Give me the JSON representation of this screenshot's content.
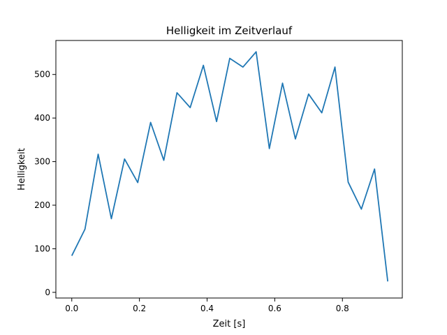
{
  "chart_data": {
    "type": "line",
    "title": "Helligkeit im Zeitverlauf",
    "xlabel": "Zeit [s]",
    "ylabel": "Helligkeit",
    "xlim": [
      -0.047,
      0.977
    ],
    "ylim": [
      -13,
      578
    ],
    "xticks": [
      0.0,
      0.2,
      0.4,
      0.6,
      0.8
    ],
    "xtick_labels": [
      "0.0",
      "0.2",
      "0.4",
      "0.6",
      "0.8"
    ],
    "yticks": [
      0,
      100,
      200,
      300,
      400,
      500
    ],
    "ytick_labels": [
      "0",
      "100",
      "200",
      "300",
      "400",
      "500"
    ],
    "grid": false,
    "series": [
      {
        "color": "#1f77b4",
        "x": [
          0.0,
          0.039,
          0.078,
          0.117,
          0.156,
          0.195,
          0.233,
          0.272,
          0.311,
          0.35,
          0.389,
          0.428,
          0.467,
          0.506,
          0.545,
          0.584,
          0.623,
          0.661,
          0.7,
          0.739,
          0.778,
          0.817,
          0.856,
          0.895,
          0.934
        ],
        "y": [
          84,
          145,
          317,
          169,
          306,
          252,
          390,
          303,
          458,
          424,
          521,
          392,
          537,
          517,
          552,
          330,
          480,
          352,
          455,
          412,
          517,
          253,
          191,
          283,
          25
        ]
      }
    ]
  }
}
